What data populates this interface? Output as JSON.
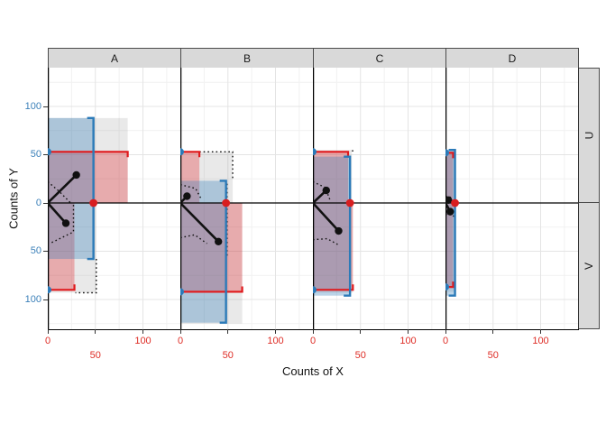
{
  "figure": {
    "kind": "faceted statistical plot (ggplot2-style facet_grid)",
    "background": "#ffffff"
  },
  "facets": {
    "columns": [
      "A",
      "B",
      "C",
      "D"
    ],
    "rows": [
      "U",
      "V"
    ]
  },
  "axes": {
    "x": {
      "title": "Counts of X",
      "tick_labels": [
        "0",
        "50",
        "100"
      ],
      "tick_values": [
        0,
        50,
        100
      ],
      "label_color": "#de2d26",
      "stagger_row2_value": 50
    },
    "y": {
      "title": "Counts of Y",
      "tick_labels": [
        "100",
        "50",
        "0",
        "50",
        "100"
      ],
      "tick_values": [
        100,
        50,
        0,
        -50,
        -100
      ],
      "label_color": "#3b80b9"
    }
  },
  "colors": {
    "blue_line": "#2b7ab8",
    "red_line": "#e0191c",
    "red_dot": "#d81e20",
    "blue_fill": "rgba(50,125,185,0.33)",
    "red_fill": "rgba(227,30,35,0.30)",
    "gray_fill": "rgba(120,120,120,0.16)",
    "grid_major": "#e4e4e4",
    "grid_minor": "#f1f1f1",
    "strip_bg": "#d9d9d9",
    "strip_border": "#4a4a4a",
    "black": "#111111"
  },
  "chart_data": {
    "type": "other",
    "description": "Four column facets (A-D) x two row facets (U above 0, V below 0). Each panel: translucent blue/red/gray range rectangles anchored at x=0 with bracket borders, black spokes from origin to dots, dotted chord lines, blue half-dots on the y-axis at the red extents, red dot on y=0 at the blue extent.",
    "x_range": [
      0,
      139
    ],
    "y_range": [
      -131,
      140
    ],
    "grid": {
      "x_major": [
        50,
        100
      ],
      "x_minor": [
        25,
        75,
        125
      ],
      "y_major": [
        50,
        100,
        -50,
        -100
      ],
      "y_minor": [
        25,
        75,
        125,
        -25,
        -75,
        -125
      ]
    },
    "panels": [
      {
        "label": "A",
        "blue": {
          "x": 48,
          "y_top": 88,
          "y_bot": -58
        },
        "red_top": {
          "x": 84,
          "y": 53
        },
        "red_bot": {
          "x": 28,
          "y": -90
        },
        "gray_top": {
          "x": 84,
          "y": 88
        },
        "gray_bot": {
          "x": 51,
          "y": -93
        },
        "spokes": [
          [
            30,
            29
          ],
          [
            19,
            -21
          ]
        ],
        "red_dot_x": 48,
        "dotted": [
          [
            [
              0,
              22
            ],
            [
              12,
              12
            ],
            [
              24,
              0
            ]
          ],
          [
            [
              27,
              -2
            ],
            [
              27,
              -30
            ],
            [
              2,
              -42
            ]
          ],
          [
            [
              51,
              -58
            ],
            [
              51,
              -93
            ],
            [
              29,
              -93
            ]
          ]
        ]
      },
      {
        "label": "B",
        "blue": {
          "x": 48,
          "y_top": 23,
          "y_bot": -124
        },
        "red_top": {
          "x": 20,
          "y": 53
        },
        "red_bot": {
          "x": 65,
          "y": -92
        },
        "gray_top": {
          "x": 55,
          "y": 53
        },
        "gray_bot": {
          "x": 65,
          "y": -125
        },
        "spokes": [
          [
            7,
            7
          ],
          [
            40,
            -40
          ]
        ],
        "red_dot_x": 48,
        "dotted": [
          [
            [
              20,
              53
            ],
            [
              55,
              53
            ],
            [
              55,
              23
            ]
          ],
          [
            [
              0,
              19
            ],
            [
              16,
              15
            ],
            [
              22,
              4
            ]
          ],
          [
            [
              49,
              20
            ],
            [
              49,
              -55
            ]
          ],
          [
            [
              0,
              -36
            ],
            [
              15,
              -33
            ],
            [
              28,
              -42
            ]
          ]
        ]
      },
      {
        "label": "C",
        "blue": {
          "x": 39,
          "y_top": 48,
          "y_bot": -96
        },
        "red_top": {
          "x": 37,
          "y": 53
        },
        "red_bot": {
          "x": 42,
          "y": -90
        },
        "gray_top": {
          "x": 41,
          "y": 55
        },
        "gray_bot": {
          "x": 42,
          "y": -93
        },
        "spokes": [
          [
            14,
            13
          ],
          [
            27,
            -29
          ]
        ],
        "red_dot_x": 39,
        "dotted": [
          [
            [
              0,
              22
            ],
            [
              13,
              16
            ],
            [
              18,
              3
            ]
          ],
          [
            [
              0,
              -38
            ],
            [
              15,
              -37
            ],
            [
              26,
              -43
            ]
          ],
          [
            [
              41,
              54
            ],
            [
              45,
              54
            ]
          ]
        ]
      },
      {
        "label": "D",
        "blue": {
          "x": 10,
          "y_top": 55,
          "y_bot": -96
        },
        "red_top": {
          "x": 8,
          "y": 52
        },
        "red_bot": {
          "x": 8,
          "y": -87
        },
        "gray_top": {
          "x": 11,
          "y": 53
        },
        "gray_bot": {
          "x": 11,
          "y": -92
        },
        "spokes": [
          [
            3,
            3
          ],
          [
            5,
            -9
          ]
        ],
        "red_dot_x": 10,
        "dotted": [
          [
            [
              0,
              7
            ],
            [
              5,
              6
            ],
            [
              8,
              1
            ]
          ],
          [
            [
              0,
              -12
            ],
            [
              5,
              -11
            ],
            [
              9,
              -14
            ]
          ]
        ]
      }
    ]
  }
}
